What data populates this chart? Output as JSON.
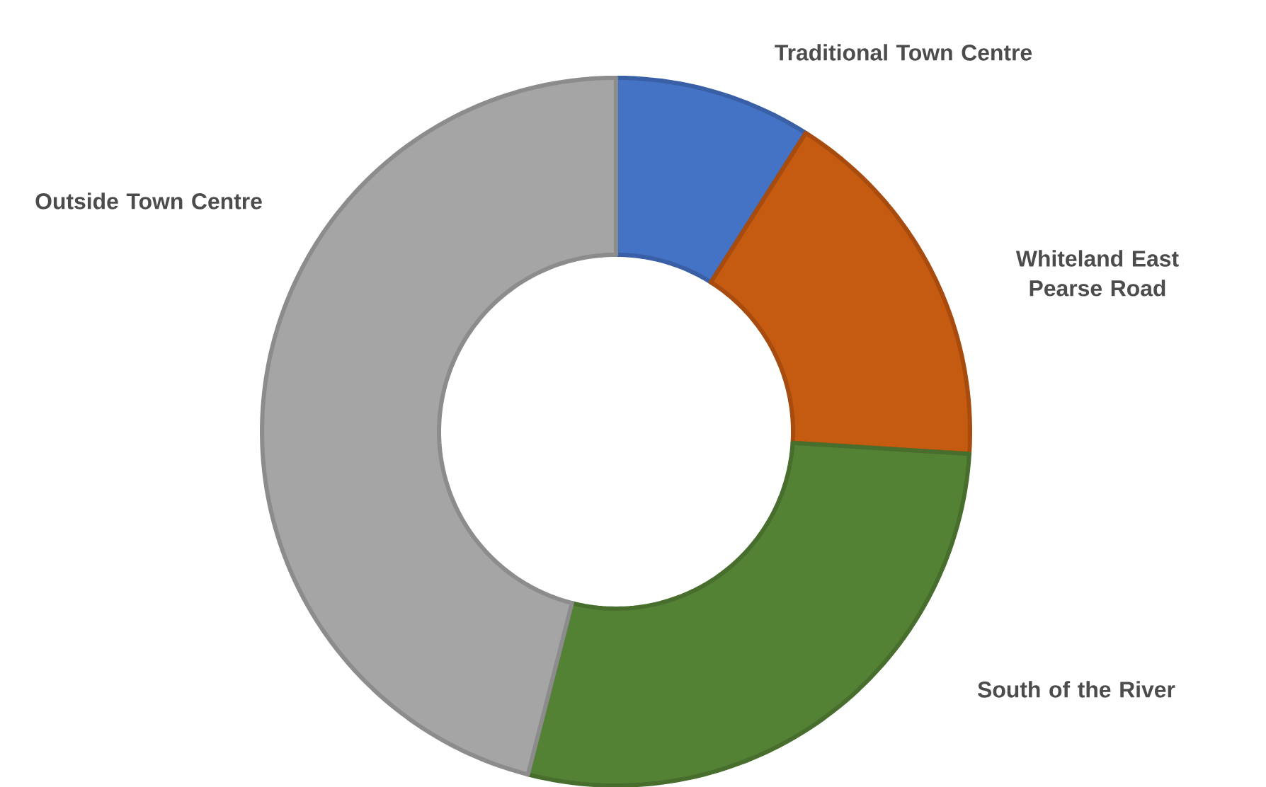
{
  "chart_data": {
    "type": "donut",
    "categories": [
      "Traditional Town Centre",
      "Whiteland East Pearse Road",
      "South of the River",
      "Outside Town Centre"
    ],
    "values": [
      9,
      17,
      28,
      46
    ],
    "colors": [
      "#4472c4",
      "#c55a11",
      "#548235",
      "#a5a5a5"
    ]
  }
}
